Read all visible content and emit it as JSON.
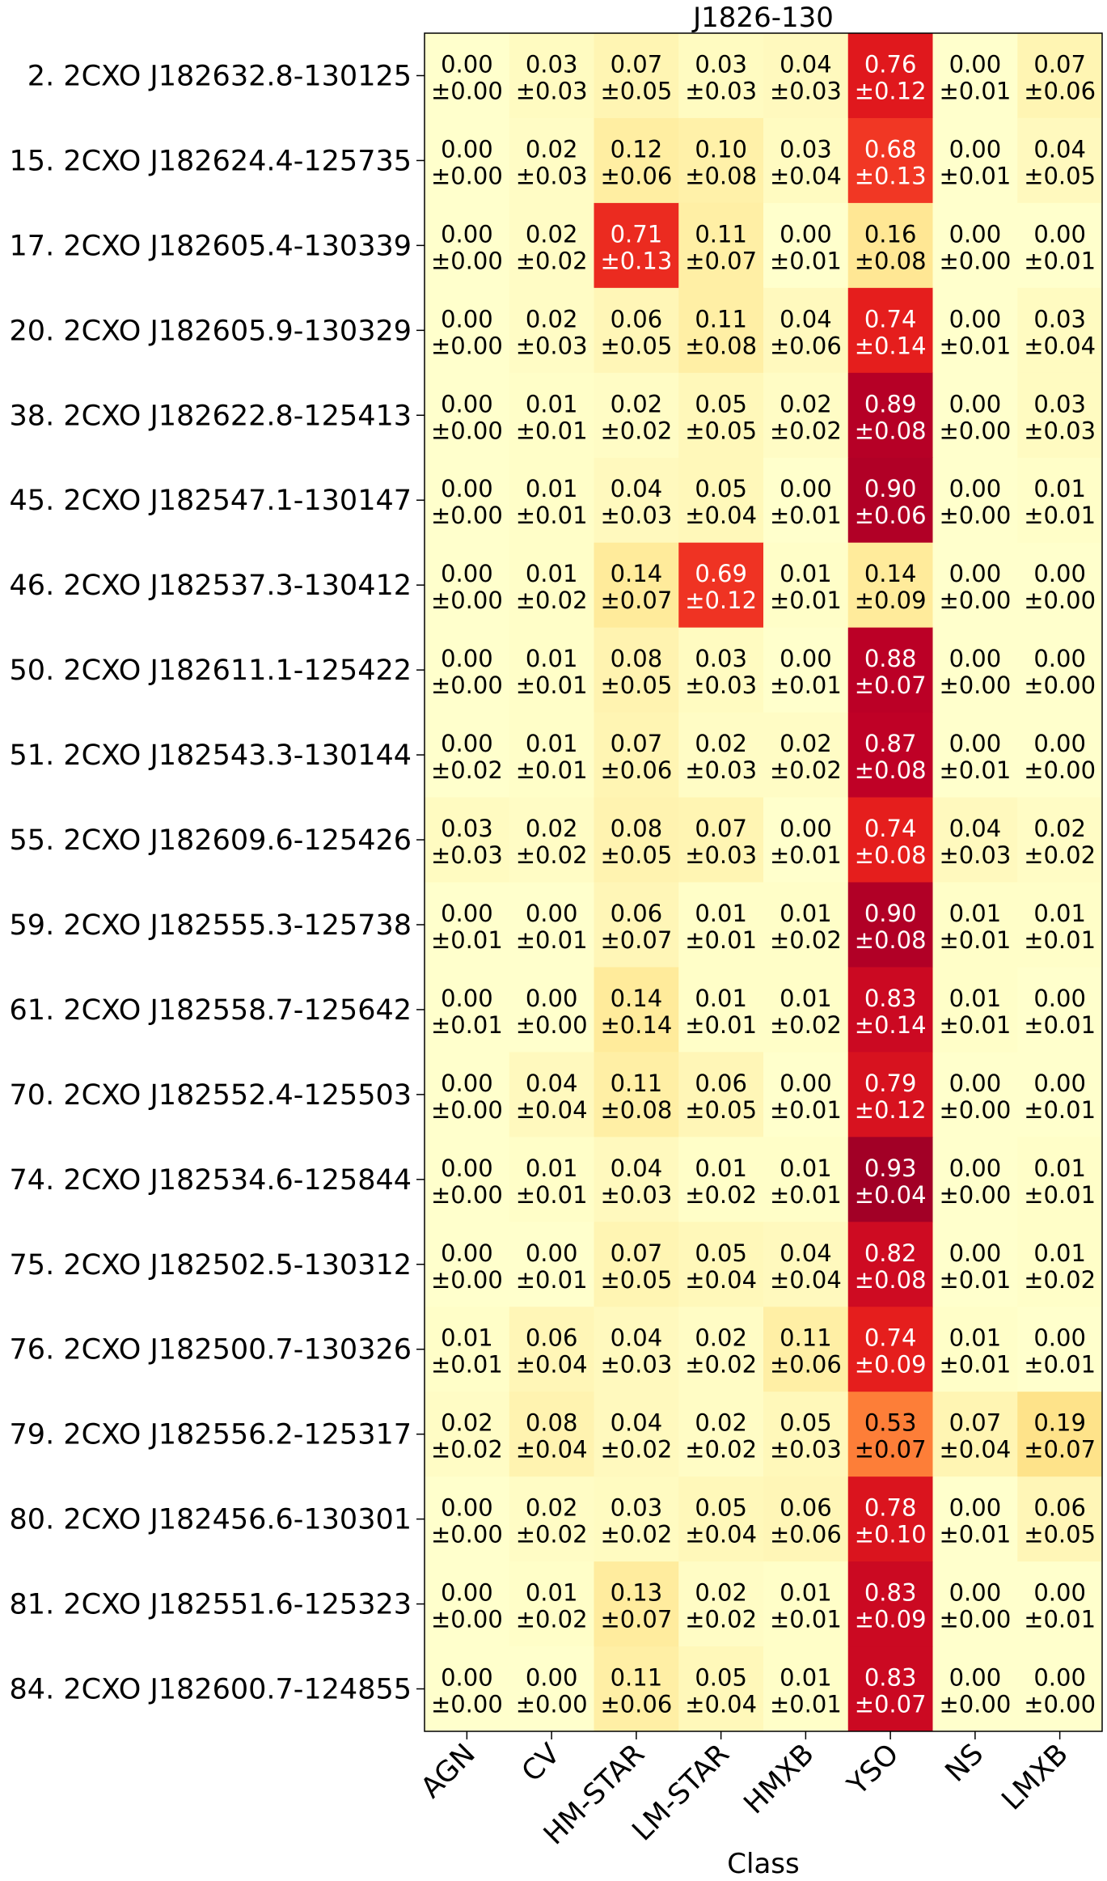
{
  "chart_data": {
    "type": "heatmap",
    "title": "J1826-130",
    "xlabel": "Class",
    "ylabel": "",
    "colormap": "YlOrRd",
    "value_range": [
      0,
      1
    ],
    "x_categories": [
      "AGN",
      "CV",
      "HM-STAR",
      "LM-STAR",
      "HMXB",
      "YSO",
      "NS",
      "LMXB"
    ],
    "y_categories": [
      "2. 2CXO J182632.8-130125",
      "15. 2CXO J182624.4-125735",
      "17. 2CXO J182605.4-130339",
      "20. 2CXO J182605.9-130329",
      "38. 2CXO J182622.8-125413",
      "45. 2CXO J182547.1-130147",
      "46. 2CXO J182537.3-130412",
      "50. 2CXO J182611.1-125422",
      "51. 2CXO J182543.3-130144",
      "55. 2CXO J182609.6-125426",
      "59. 2CXO J182555.3-125738",
      "61. 2CXO J182558.7-125642",
      "70. 2CXO J182552.4-125503",
      "74. 2CXO J182534.6-125844",
      "75. 2CXO J182502.5-130312",
      "76. 2CXO J182500.7-130326",
      "79. 2CXO J182556.2-125317",
      "80. 2CXO J182456.6-130301",
      "81. 2CXO J182551.6-125323",
      "84. 2CXO J182600.7-124855"
    ],
    "values": [
      [
        0.0,
        0.03,
        0.07,
        0.03,
        0.04,
        0.76,
        0.0,
        0.07
      ],
      [
        0.0,
        0.02,
        0.12,
        0.1,
        0.03,
        0.68,
        0.0,
        0.04
      ],
      [
        0.0,
        0.02,
        0.71,
        0.11,
        0.0,
        0.16,
        0.0,
        0.0
      ],
      [
        0.0,
        0.02,
        0.06,
        0.11,
        0.04,
        0.74,
        0.0,
        0.03
      ],
      [
        0.0,
        0.01,
        0.02,
        0.05,
        0.02,
        0.89,
        0.0,
        0.03
      ],
      [
        0.0,
        0.01,
        0.04,
        0.05,
        0.0,
        0.9,
        0.0,
        0.01
      ],
      [
        0.0,
        0.01,
        0.14,
        0.69,
        0.01,
        0.14,
        0.0,
        0.0
      ],
      [
        0.0,
        0.01,
        0.08,
        0.03,
        0.0,
        0.88,
        0.0,
        0.0
      ],
      [
        0.0,
        0.01,
        0.07,
        0.02,
        0.02,
        0.87,
        0.0,
        0.0
      ],
      [
        0.03,
        0.02,
        0.08,
        0.07,
        0.0,
        0.74,
        0.04,
        0.02
      ],
      [
        0.0,
        0.0,
        0.06,
        0.01,
        0.01,
        0.9,
        0.01,
        0.01
      ],
      [
        0.0,
        0.0,
        0.14,
        0.01,
        0.01,
        0.83,
        0.01,
        0.0
      ],
      [
        0.0,
        0.04,
        0.11,
        0.06,
        0.0,
        0.79,
        0.0,
        0.0
      ],
      [
        0.0,
        0.01,
        0.04,
        0.01,
        0.01,
        0.93,
        0.0,
        0.01
      ],
      [
        0.0,
        0.0,
        0.07,
        0.05,
        0.04,
        0.82,
        0.0,
        0.01
      ],
      [
        0.01,
        0.06,
        0.04,
        0.02,
        0.11,
        0.74,
        0.01,
        0.0
      ],
      [
        0.02,
        0.08,
        0.04,
        0.02,
        0.05,
        0.53,
        0.07,
        0.19
      ],
      [
        0.0,
        0.02,
        0.03,
        0.05,
        0.06,
        0.78,
        0.0,
        0.06
      ],
      [
        0.0,
        0.01,
        0.13,
        0.02,
        0.01,
        0.83,
        0.0,
        0.0
      ],
      [
        0.0,
        0.0,
        0.11,
        0.05,
        0.01,
        0.83,
        0.0,
        0.0
      ]
    ],
    "errors": [
      [
        0.0,
        0.03,
        0.05,
        0.03,
        0.03,
        0.12,
        0.01,
        0.06
      ],
      [
        0.0,
        0.03,
        0.06,
        0.08,
        0.04,
        0.13,
        0.01,
        0.05
      ],
      [
        0.0,
        0.02,
        0.13,
        0.07,
        0.01,
        0.08,
        0.0,
        0.01
      ],
      [
        0.0,
        0.03,
        0.05,
        0.08,
        0.06,
        0.14,
        0.01,
        0.04
      ],
      [
        0.0,
        0.01,
        0.02,
        0.05,
        0.02,
        0.08,
        0.0,
        0.03
      ],
      [
        0.0,
        0.01,
        0.03,
        0.04,
        0.01,
        0.06,
        0.0,
        0.01
      ],
      [
        0.0,
        0.02,
        0.07,
        0.12,
        0.01,
        0.09,
        0.0,
        0.0
      ],
      [
        0.0,
        0.01,
        0.05,
        0.03,
        0.01,
        0.07,
        0.0,
        0.0
      ],
      [
        0.02,
        0.01,
        0.06,
        0.03,
        0.02,
        0.08,
        0.01,
        0.0
      ],
      [
        0.03,
        0.02,
        0.05,
        0.03,
        0.01,
        0.08,
        0.03,
        0.02
      ],
      [
        0.01,
        0.01,
        0.07,
        0.01,
        0.02,
        0.08,
        0.01,
        0.01
      ],
      [
        0.01,
        0.0,
        0.14,
        0.01,
        0.02,
        0.14,
        0.01,
        0.01
      ],
      [
        0.0,
        0.04,
        0.08,
        0.05,
        0.01,
        0.12,
        0.0,
        0.01
      ],
      [
        0.0,
        0.01,
        0.03,
        0.02,
        0.01,
        0.04,
        0.0,
        0.01
      ],
      [
        0.0,
        0.01,
        0.05,
        0.04,
        0.04,
        0.08,
        0.01,
        0.02
      ],
      [
        0.01,
        0.04,
        0.03,
        0.02,
        0.06,
        0.09,
        0.01,
        0.01
      ],
      [
        0.02,
        0.04,
        0.02,
        0.02,
        0.03,
        0.07,
        0.04,
        0.07
      ],
      [
        0.0,
        0.02,
        0.02,
        0.04,
        0.06,
        0.1,
        0.01,
        0.05
      ],
      [
        0.0,
        0.02,
        0.07,
        0.02,
        0.01,
        0.09,
        0.0,
        0.01
      ],
      [
        0.0,
        0.0,
        0.06,
        0.04,
        0.01,
        0.07,
        0.0,
        0.0
      ]
    ]
  }
}
